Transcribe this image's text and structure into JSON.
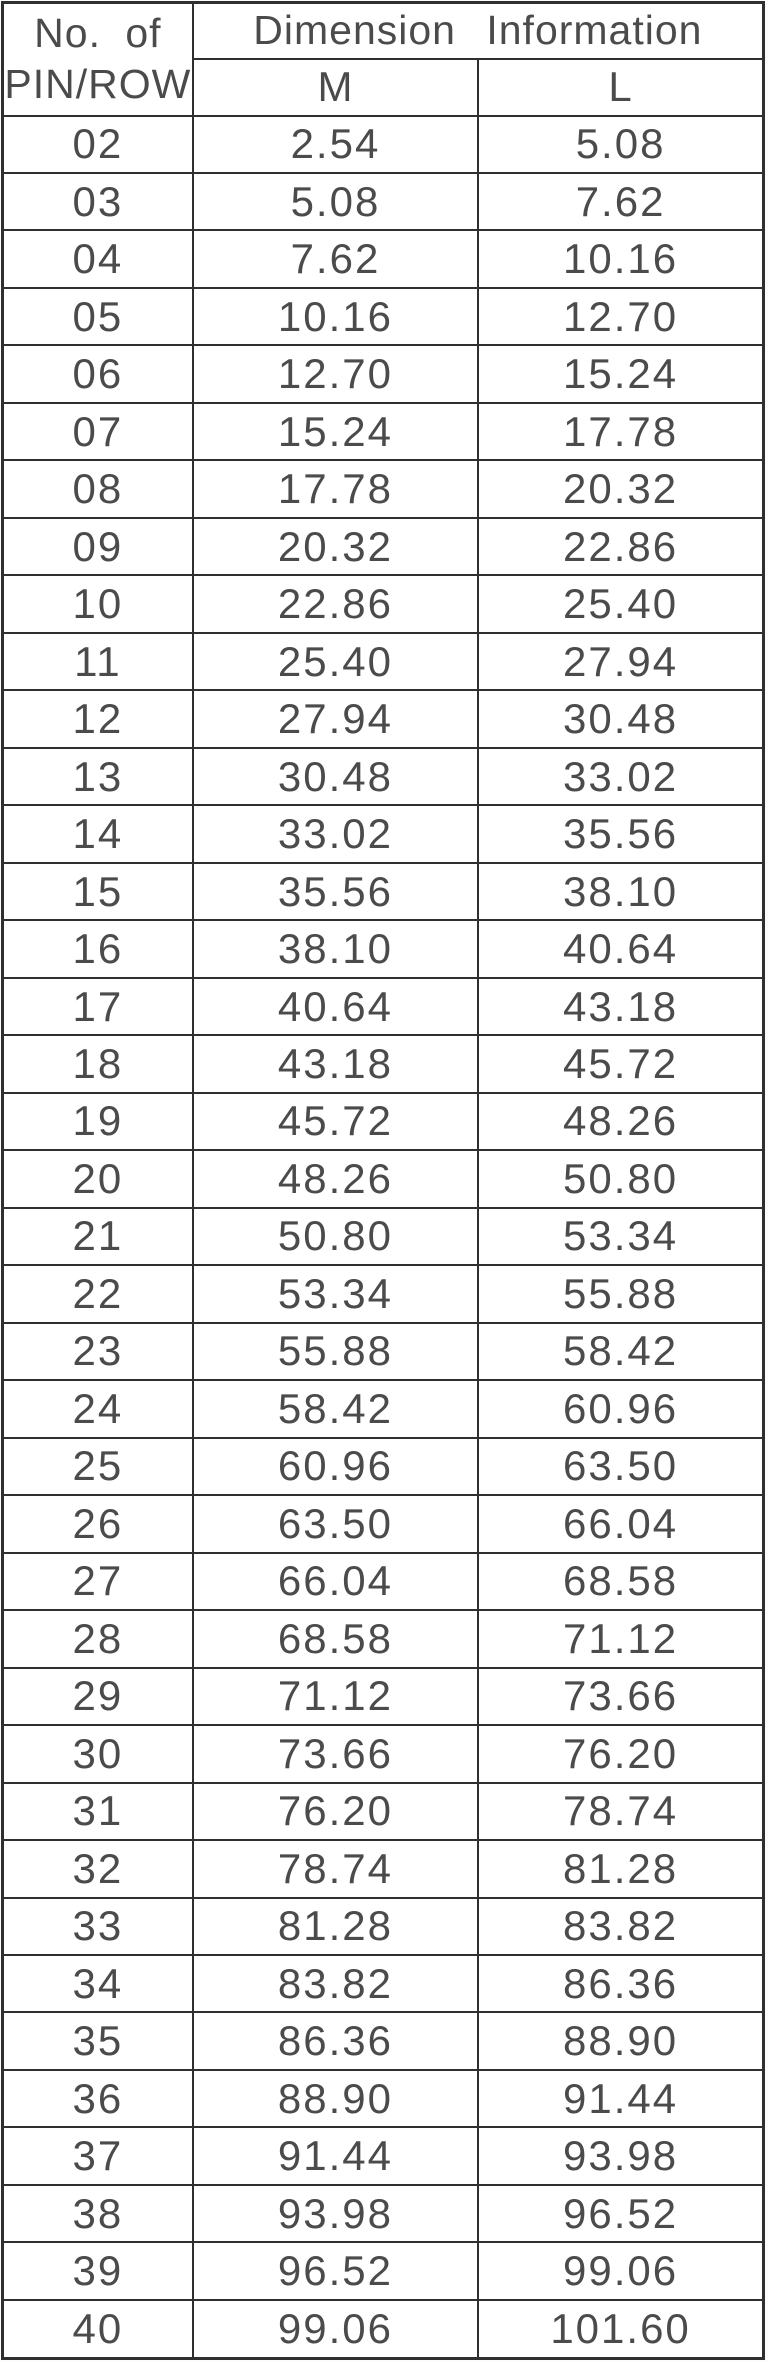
{
  "colors": {
    "border": "#2f2f2f",
    "text": "#4b4b4b",
    "background": "#fcfcfc"
  },
  "table": {
    "header": {
      "pin_line1": "No. of",
      "pin_line2": "PIN/ROW",
      "group_label": "Dimension Information",
      "col_m": "M",
      "col_l": "L"
    },
    "rows": [
      {
        "pins": "02",
        "m": "2.54",
        "l": "5.08"
      },
      {
        "pins": "03",
        "m": "5.08",
        "l": "7.62"
      },
      {
        "pins": "04",
        "m": "7.62",
        "l": "10.16"
      },
      {
        "pins": "05",
        "m": "10.16",
        "l": "12.70"
      },
      {
        "pins": "06",
        "m": "12.70",
        "l": "15.24"
      },
      {
        "pins": "07",
        "m": "15.24",
        "l": "17.78"
      },
      {
        "pins": "08",
        "m": "17.78",
        "l": "20.32"
      },
      {
        "pins": "09",
        "m": "20.32",
        "l": "22.86"
      },
      {
        "pins": "10",
        "m": "22.86",
        "l": "25.40"
      },
      {
        "pins": "11",
        "m": "25.40",
        "l": "27.94"
      },
      {
        "pins": "12",
        "m": "27.94",
        "l": "30.48"
      },
      {
        "pins": "13",
        "m": "30.48",
        "l": "33.02"
      },
      {
        "pins": "14",
        "m": "33.02",
        "l": "35.56"
      },
      {
        "pins": "15",
        "m": "35.56",
        "l": "38.10"
      },
      {
        "pins": "16",
        "m": "38.10",
        "l": "40.64"
      },
      {
        "pins": "17",
        "m": "40.64",
        "l": "43.18"
      },
      {
        "pins": "18",
        "m": "43.18",
        "l": "45.72"
      },
      {
        "pins": "19",
        "m": "45.72",
        "l": "48.26"
      },
      {
        "pins": "20",
        "m": "48.26",
        "l": "50.80"
      },
      {
        "pins": "21",
        "m": "50.80",
        "l": "53.34"
      },
      {
        "pins": "22",
        "m": "53.34",
        "l": "55.88"
      },
      {
        "pins": "23",
        "m": "55.88",
        "l": "58.42"
      },
      {
        "pins": "24",
        "m": "58.42",
        "l": "60.96"
      },
      {
        "pins": "25",
        "m": "60.96",
        "l": "63.50"
      },
      {
        "pins": "26",
        "m": "63.50",
        "l": "66.04"
      },
      {
        "pins": "27",
        "m": "66.04",
        "l": "68.58"
      },
      {
        "pins": "28",
        "m": "68.58",
        "l": "71.12"
      },
      {
        "pins": "29",
        "m": "71.12",
        "l": "73.66"
      },
      {
        "pins": "30",
        "m": "73.66",
        "l": "76.20"
      },
      {
        "pins": "31",
        "m": "76.20",
        "l": "78.74"
      },
      {
        "pins": "32",
        "m": "78.74",
        "l": "81.28"
      },
      {
        "pins": "33",
        "m": "81.28",
        "l": "83.82"
      },
      {
        "pins": "34",
        "m": "83.82",
        "l": "86.36"
      },
      {
        "pins": "35",
        "m": "86.36",
        "l": "88.90"
      },
      {
        "pins": "36",
        "m": "88.90",
        "l": "91.44"
      },
      {
        "pins": "37",
        "m": "91.44",
        "l": "93.98"
      },
      {
        "pins": "38",
        "m": "93.98",
        "l": "96.52"
      },
      {
        "pins": "39",
        "m": "96.52",
        "l": "99.06"
      },
      {
        "pins": "40",
        "m": "99.06",
        "l": "101.60"
      }
    ]
  }
}
